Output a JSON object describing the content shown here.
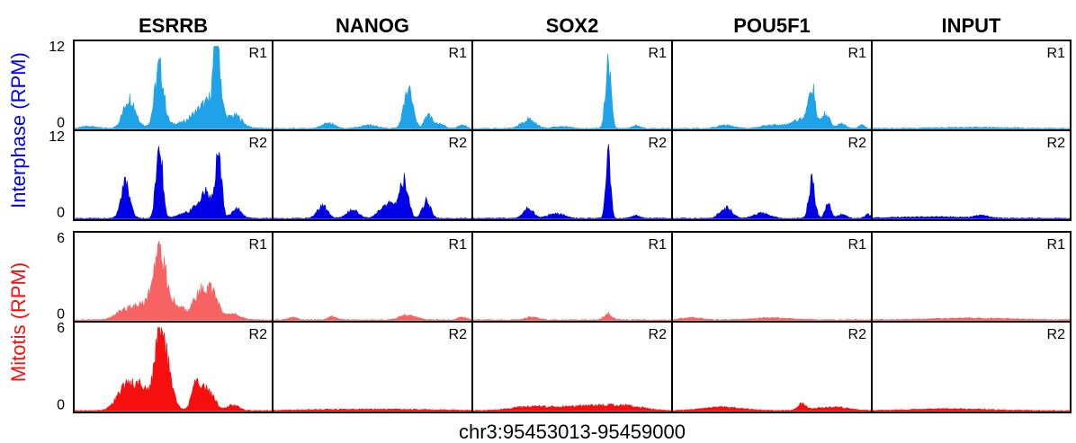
{
  "chart_data": {
    "type": "area",
    "region": "chr3:95453013-95459000",
    "columns": [
      "ESRRB",
      "NANOG",
      "SOX2",
      "POU5F1",
      "INPUT"
    ],
    "groups": [
      {
        "label": "Interphase (RPM)",
        "color_r1": "#1fa2e8",
        "color_r2": "#0000e6",
        "ylim": [
          0,
          12
        ],
        "ticks": [
          "12",
          "0"
        ],
        "replicates": [
          "R1",
          "R2"
        ],
        "peaks": {
          "R1": {
            "ESRRB": [
              [
                0.08,
                0.3,
                0.04
              ],
              [
                0.28,
                4.3,
                0.03
              ],
              [
                0.43,
                8.4,
                0.022
              ],
              [
                0.68,
                3.2,
                0.06
              ],
              [
                0.72,
                11.2,
                0.016
              ],
              [
                0.82,
                1.4,
                0.03
              ],
              [
                0.58,
                0.7,
                0.15
              ]
            ],
            "NANOG": [
              [
                0.28,
                0.8,
                0.03
              ],
              [
                0.48,
                0.5,
                0.04
              ],
              [
                0.68,
                5.6,
                0.022
              ],
              [
                0.78,
                1.9,
                0.02
              ],
              [
                0.84,
                0.7,
                0.02
              ],
              [
                0.95,
                0.5,
                0.02
              ]
            ],
            "SOX2": [
              [
                0.28,
                1.3,
                0.035
              ],
              [
                0.45,
                0.3,
                0.04
              ],
              [
                0.68,
                9.3,
                0.014
              ],
              [
                0.82,
                0.4,
                0.02
              ]
            ],
            "POU5F1": [
              [
                0.27,
                0.5,
                0.04
              ],
              [
                0.5,
                0.5,
                0.05
              ],
              [
                0.65,
                1.4,
                0.05
              ],
              [
                0.7,
                5.3,
                0.016
              ],
              [
                0.77,
                2.0,
                0.02
              ],
              [
                0.85,
                0.7,
                0.02
              ],
              [
                0.95,
                0.5,
                0.015
              ]
            ],
            "INPUT": [
              [
                0.5,
                0.15,
                0.2
              ]
            ]
          },
          "R2": {
            "ESRRB": [
              [
                0.26,
                5.2,
                0.022
              ],
              [
                0.43,
                10.8,
                0.016
              ],
              [
                0.58,
                0.8,
                0.05
              ],
              [
                0.67,
                3.5,
                0.04
              ],
              [
                0.73,
                8.3,
                0.014
              ],
              [
                0.82,
                1.3,
                0.025
              ]
            ],
            "NANOG": [
              [
                0.25,
                1.8,
                0.025
              ],
              [
                0.4,
                1.2,
                0.03
              ],
              [
                0.55,
                0.8,
                0.03
              ],
              [
                0.66,
                5.2,
                0.02
              ],
              [
                0.6,
                1.8,
                0.04
              ],
              [
                0.77,
                2.5,
                0.02
              ]
            ],
            "SOX2": [
              [
                0.28,
                1.4,
                0.025
              ],
              [
                0.42,
                0.7,
                0.04
              ],
              [
                0.68,
                10.0,
                0.012
              ],
              [
                0.82,
                0.4,
                0.02
              ]
            ],
            "POU5F1": [
              [
                0.27,
                1.5,
                0.03
              ],
              [
                0.45,
                0.7,
                0.04
              ],
              [
                0.7,
                5.4,
                0.015
              ],
              [
                0.78,
                2.1,
                0.015
              ],
              [
                0.85,
                0.6,
                0.02
              ],
              [
                0.98,
                0.6,
                0.015
              ]
            ],
            "INPUT": [
              [
                0.55,
                0.35,
                0.03
              ],
              [
                0.3,
                0.2,
                0.2
              ]
            ]
          }
        }
      },
      {
        "label": "Mitotis (RPM)",
        "color_r1": "#f76262",
        "color_r2": "#f50f0f",
        "ylim": [
          0,
          6
        ],
        "ticks": [
          "6",
          "0"
        ],
        "replicates": [
          "R1",
          "R2"
        ],
        "peaks": {
          "R1": {
            "ESRRB": [
              [
                0.25,
                0.6,
                0.04
              ],
              [
                0.35,
                1.1,
                0.05
              ],
              [
                0.43,
                4.1,
                0.03
              ],
              [
                0.5,
                1.2,
                0.05
              ],
              [
                0.64,
                2.0,
                0.035
              ],
              [
                0.7,
                1.6,
                0.03
              ],
              [
                0.8,
                0.4,
                0.04
              ]
            ],
            "NANOG": [
              [
                0.1,
                0.2,
                0.02
              ],
              [
                0.3,
                0.25,
                0.02
              ],
              [
                0.68,
                0.35,
                0.04
              ],
              [
                0.95,
                0.2,
                0.02
              ]
            ],
            "SOX2": [
              [
                0.3,
                0.2,
                0.03
              ],
              [
                0.68,
                0.45,
                0.02
              ]
            ],
            "POU5F1": [
              [
                0.1,
                0.15,
                0.05
              ],
              [
                0.5,
                0.15,
                0.1
              ]
            ],
            "INPUT": [
              [
                0.5,
                0.12,
                0.2
              ]
            ]
          },
          "R2": {
            "ESRRB": [
              [
                0.25,
                1.4,
                0.04
              ],
              [
                0.33,
                1.8,
                0.04
              ],
              [
                0.43,
                5.2,
                0.025
              ],
              [
                0.47,
                2.4,
                0.03
              ],
              [
                0.62,
                2.0,
                0.025
              ],
              [
                0.68,
                1.3,
                0.03
              ],
              [
                0.8,
                0.4,
                0.03
              ]
            ],
            "NANOG": [
              [
                0.5,
                0.1,
                0.3
              ]
            ],
            "SOX2": [
              [
                0.3,
                0.3,
                0.1
              ],
              [
                0.55,
                0.3,
                0.1
              ],
              [
                0.75,
                0.35,
                0.1
              ]
            ],
            "POU5F1": [
              [
                0.25,
                0.25,
                0.1
              ],
              [
                0.65,
                0.45,
                0.02
              ],
              [
                0.8,
                0.25,
                0.08
              ]
            ],
            "INPUT": [
              [
                0.4,
                0.12,
                0.2
              ]
            ]
          }
        }
      }
    ]
  }
}
